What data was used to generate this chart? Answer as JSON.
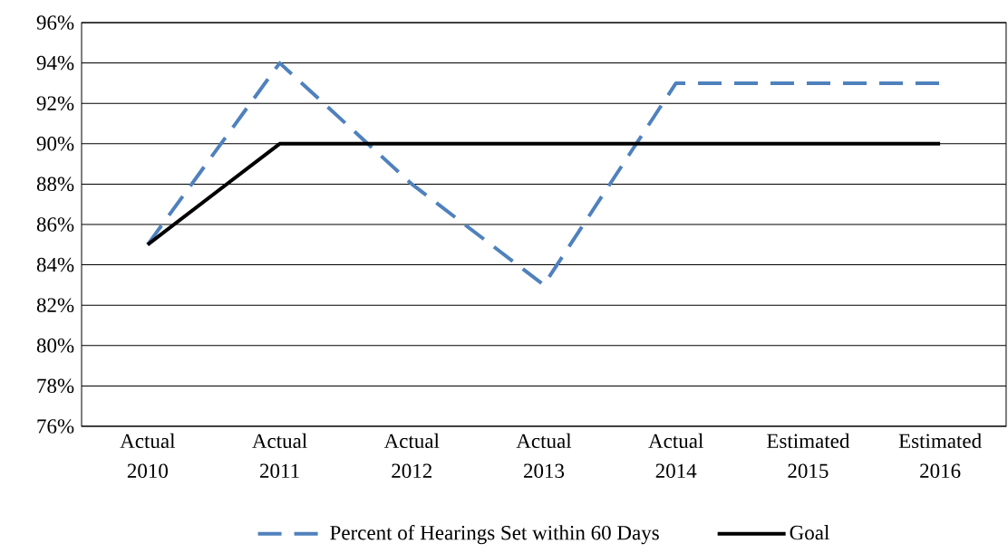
{
  "chart_data": {
    "type": "line",
    "categories": [
      "Actual 2010",
      "Actual 2011",
      "Actual 2012",
      "Actual 2013",
      "Actual 2014",
      "Estimated 2015",
      "Estimated 2016"
    ],
    "series": [
      {
        "name": "Percent of Hearings Set within 60 Days",
        "color": "#4f81bd",
        "line_style": "dashed",
        "values": [
          85,
          94,
          88,
          83,
          93,
          93,
          93
        ]
      },
      {
        "name": "Goal",
        "color": "#000000",
        "line_style": "solid",
        "values": [
          85,
          90,
          90,
          90,
          90,
          90,
          90
        ]
      }
    ],
    "ylim": [
      76,
      96
    ],
    "yticks": [
      {
        "value": 76,
        "label": "76%"
      },
      {
        "value": 78,
        "label": "78%"
      },
      {
        "value": 80,
        "label": "80%"
      },
      {
        "value": 82,
        "label": "82%"
      },
      {
        "value": 84,
        "label": "84%"
      },
      {
        "value": 86,
        "label": "86%"
      },
      {
        "value": 88,
        "label": "88%"
      },
      {
        "value": 90,
        "label": "90%"
      },
      {
        "value": 92,
        "label": "92%"
      },
      {
        "value": 94,
        "label": "94%"
      },
      {
        "value": 96,
        "label": "96%"
      }
    ],
    "grid": "y",
    "legend": "bottom",
    "marker": "none"
  }
}
